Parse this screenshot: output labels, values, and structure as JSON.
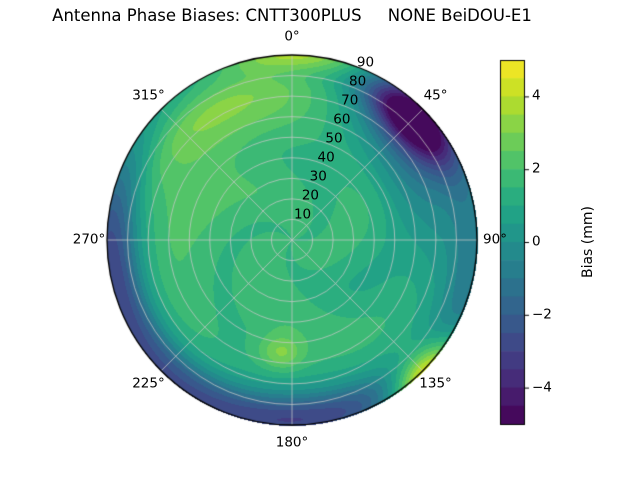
{
  "chart_data": {
    "type": "heatmap",
    "subtype": "polar_filled_contour",
    "title": "Antenna Phase Biases: CNTT300PLUS     NONE BeiDOU-E1",
    "grid": true,
    "grid_color": "#c8c8c8",
    "outline_color": "#000000",
    "background_color": "#ffffff",
    "azimuth_axis": {
      "direction": "clockwise",
      "zero_location": "top",
      "ticks": [
        {
          "angle": 0,
          "label": "0°"
        },
        {
          "angle": 45,
          "label": "45°"
        },
        {
          "angle": 90,
          "label": "90°"
        },
        {
          "angle": 135,
          "label": "135°"
        },
        {
          "angle": 180,
          "label": "180°"
        },
        {
          "angle": 225,
          "label": "225°"
        },
        {
          "angle": 270,
          "label": "270°"
        },
        {
          "angle": 315,
          "label": "315°"
        }
      ]
    },
    "radial_axis": {
      "min": 0,
      "max": 90,
      "ring_step": 10,
      "label_angle_deg": 22.5,
      "ticks": [
        {
          "value": 10,
          "label": "10"
        },
        {
          "value": 20,
          "label": "20"
        },
        {
          "value": 30,
          "label": "30"
        },
        {
          "value": 40,
          "label": "40"
        },
        {
          "value": 50,
          "label": "50"
        },
        {
          "value": 60,
          "label": "60"
        },
        {
          "value": 70,
          "label": "70"
        },
        {
          "value": 80,
          "label": "80"
        },
        {
          "value": 90,
          "label": "90"
        }
      ]
    },
    "colorbar": {
      "label": "Bias (mm)",
      "colormap": "viridis",
      "range": [
        -5,
        5
      ],
      "ticks": [
        {
          "value": 4,
          "label": "4"
        },
        {
          "value": 2,
          "label": "2"
        },
        {
          "value": 0,
          "label": "0"
        },
        {
          "value": -2,
          "label": "−2"
        },
        {
          "value": -4,
          "label": "−4"
        }
      ]
    },
    "levels_step": 0.5,
    "colormap_stops": [
      {
        "t": 0.0,
        "c": "#440154"
      },
      {
        "t": 0.1,
        "c": "#482475"
      },
      {
        "t": 0.2,
        "c": "#414487"
      },
      {
        "t": 0.3,
        "c": "#355f8d"
      },
      {
        "t": 0.4,
        "c": "#2a788e"
      },
      {
        "t": 0.5,
        "c": "#21918c"
      },
      {
        "t": 0.6,
        "c": "#22a884"
      },
      {
        "t": 0.7,
        "c": "#44bf70"
      },
      {
        "t": 0.8,
        "c": "#7ad151"
      },
      {
        "t": 0.9,
        "c": "#bddf26"
      },
      {
        "t": 1.0,
        "c": "#fde725"
      }
    ],
    "field_model": {
      "comment": "approximate bias field in mm: interior ~1.5-2 (green), edges negative (blue), dark purple minimum ~-5 near az 45 r 83, yellow maxima ~+4.5 near az 135 and az 0 at rim",
      "base": 1.7,
      "edge": {
        "start": 72,
        "end": 90,
        "amp": -1.1
      },
      "wiggle": {
        "amp": 0.25,
        "az_freq": 3,
        "r_coef": 0.12
      },
      "features": [
        {
          "az": 45,
          "r": 83,
          "saz": 13,
          "sr": 9,
          "amp": -6.5
        },
        {
          "az": 48,
          "r": 68,
          "saz": 26,
          "sr": 16,
          "amp": -2.0
        },
        {
          "az": 135,
          "r": 92,
          "saz": 9,
          "sr": 8,
          "amp": 5.5
        },
        {
          "az": 2,
          "r": 91,
          "saz": 16,
          "sr": 6,
          "amp": 3.2
        },
        {
          "az": 212,
          "r": 87,
          "saz": 38,
          "sr": 11,
          "amp": -3.0
        },
        {
          "az": 272,
          "r": 88,
          "saz": 22,
          "sr": 10,
          "amp": -2.4
        },
        {
          "az": 170,
          "r": 86,
          "saz": 22,
          "sr": 9,
          "amp": -2.0
        },
        {
          "az": 95,
          "r": 80,
          "saz": 28,
          "sr": 13,
          "amp": -1.6
        },
        {
          "az": 315,
          "r": 68,
          "saz": 26,
          "sr": 16,
          "amp": 1.0
        },
        {
          "az": 186,
          "r": 55,
          "saz": 8,
          "sr": 6,
          "amp": 1.6
        },
        {
          "az": 0,
          "r": 74,
          "saz": 40,
          "sr": 12,
          "amp": 0.7
        },
        {
          "az": 118,
          "r": 40,
          "saz": 30,
          "sr": 16,
          "amp": -0.5
        }
      ]
    }
  }
}
